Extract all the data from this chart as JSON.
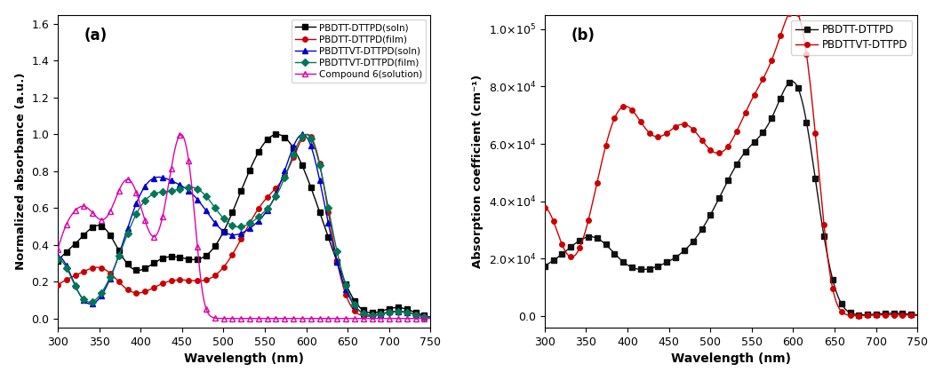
{
  "panel_a": {
    "title": "(a)",
    "xlabel": "Wavelength (nm)",
    "ylabel": "Normalized absorbance (a.u.)",
    "xlim": [
      300,
      750
    ],
    "ylim": [
      -0.05,
      1.65
    ],
    "yticks": [
      0.0,
      0.2,
      0.4,
      0.6,
      0.8,
      1.0,
      1.2,
      1.4,
      1.6
    ],
    "xticks": [
      300,
      350,
      400,
      450,
      500,
      550,
      600,
      650,
      700,
      750
    ],
    "series": [
      {
        "label": "PBDTT-DTTPD(soln)",
        "color": "#000000",
        "marker": "s",
        "mfc": "#000000",
        "mec": "#000000"
      },
      {
        "label": "PBDTT-DTTPD(film)",
        "color": "#cc0000",
        "marker": "o",
        "mfc": "#cc0000",
        "mec": "#cc0000"
      },
      {
        "label": "PBDTTVT-DTTPD(soln)",
        "color": "#0000cc",
        "marker": "^",
        "mfc": "#0000cc",
        "mec": "#0000cc"
      },
      {
        "label": "PBDTTVT-DTTPD(film)",
        "color": "#007755",
        "marker": "D",
        "mfc": "#007755",
        "mec": "#007755"
      },
      {
        "label": "Compound 6(solution)",
        "color": "#dd00aa",
        "marker": "^",
        "mfc": "none",
        "mec": "#dd00aa"
      }
    ],
    "markersize": 4,
    "linewidth": 1.0,
    "markevery": 7
  },
  "panel_b": {
    "title": "(b)",
    "xlabel": "Wavelength (nm)",
    "ylabel": "Absorption coefficient (cm⁻¹)",
    "xlim": [
      300,
      750
    ],
    "ylim": [
      -4000,
      105000
    ],
    "yticks": [
      0,
      20000,
      40000,
      60000,
      80000,
      100000
    ],
    "xticks": [
      300,
      350,
      400,
      450,
      500,
      550,
      600,
      650,
      700,
      750
    ],
    "series": [
      {
        "label": "PBDTT-DTTPD",
        "color": "#111111",
        "marker": "s",
        "mfc": "#111111",
        "mec": "#111111"
      },
      {
        "label": "PBDTTVT-DTTPD",
        "color": "#cc0000",
        "marker": "o",
        "mfc": "#cc0000",
        "mec": "#cc0000"
      }
    ],
    "markersize": 4,
    "linewidth": 1.0,
    "markevery": 7
  }
}
